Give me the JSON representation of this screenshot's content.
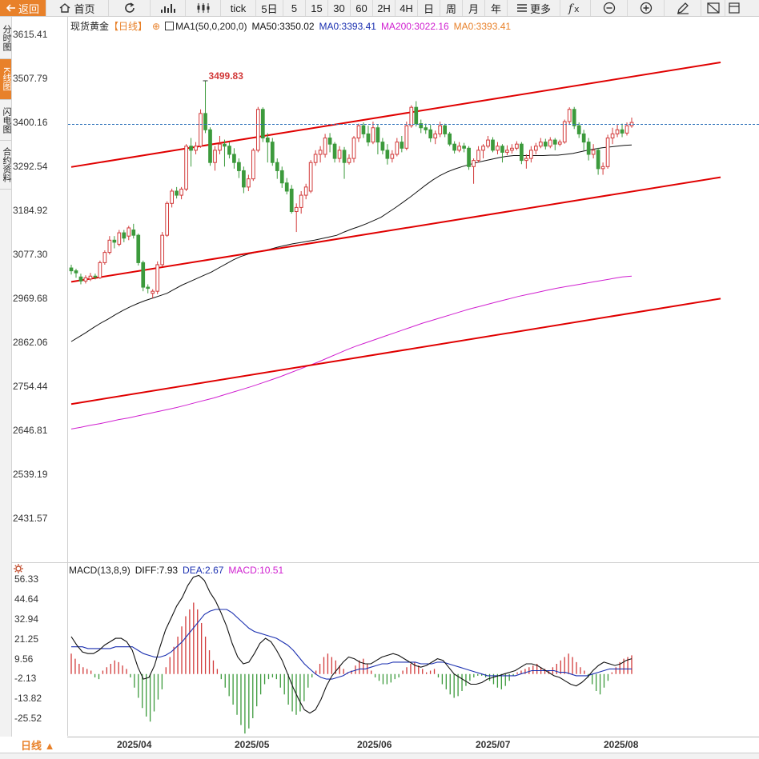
{
  "toolbar": {
    "back_label": "返回",
    "home_label": "首页",
    "tick_label": "tick",
    "periods": [
      "5日",
      "5",
      "15",
      "30",
      "60",
      "2H",
      "4H",
      "日",
      "周",
      "月",
      "年"
    ],
    "more_label": "更多"
  },
  "sidebar": {
    "tabs": [
      "分时图",
      "K线图",
      "闪电图",
      "合约资料"
    ],
    "active": 1
  },
  "legend": {
    "symbol": "现货黄金",
    "period": "【日线】",
    "ma_group": "MA1(50,0,200,0)",
    "ma50": "MA50:3350.02",
    "ma0a": "MA0:3393.41",
    "ma200": "MA200:3022.16",
    "ma0b": "MA0:3393.41"
  },
  "macd_legend": {
    "name": "MACD(13,8,9)",
    "diff": "DIFF:7.93",
    "dea": "DEA:2.67",
    "macd": "MACD:10.51"
  },
  "colors": {
    "up": "#d23a3a",
    "down": "#3c9a3c",
    "trend": "#e00000",
    "ma50": "#111111",
    "ma200": "#d020d0",
    "dea": "#1a2fb0",
    "accent": "#e8812a"
  },
  "price_axis": [
    "3615.41",
    "3507.79",
    "3400.16",
    "3292.54",
    "3184.92",
    "3077.30",
    "2969.68",
    "2862.06",
    "2754.44",
    "2646.81",
    "2539.19",
    "2431.57"
  ],
  "current_price": 3393.41,
  "macd_axis": [
    "56.33",
    "44.64",
    "32.94",
    "21.25",
    "9.56",
    "-2.13",
    "-13.82",
    "-25.52"
  ],
  "peak_annotation": "3499.83",
  "period_button": "日线 ▲",
  "x_axis": [
    "2025/04",
    "2025/05",
    "2025/06",
    "2025/07",
    "2025/08"
  ],
  "chart_data": {
    "type": "candlestick",
    "title": "现货黄金【日线】",
    "y_range": [
      2431.57,
      3615.41
    ],
    "candles": [
      {
        "o": 3042,
        "c": 3035,
        "h": 3050,
        "l": 3026
      },
      {
        "o": 3035,
        "c": 3030,
        "h": 3040,
        "l": 3018
      },
      {
        "o": 3020,
        "c": 3010,
        "h": 3028,
        "l": 3002
      },
      {
        "o": 3010,
        "c": 3018,
        "h": 3024,
        "l": 3004
      },
      {
        "o": 3015,
        "c": 3022,
        "h": 3030,
        "l": 3010
      },
      {
        "o": 3022,
        "c": 3020,
        "h": 3028,
        "l": 3014
      },
      {
        "o": 3018,
        "c": 3055,
        "h": 3060,
        "l": 3015
      },
      {
        "o": 3055,
        "c": 3080,
        "h": 3085,
        "l": 3050
      },
      {
        "o": 3080,
        "c": 3110,
        "h": 3120,
        "l": 3075
      },
      {
        "o": 3110,
        "c": 3105,
        "h": 3120,
        "l": 3090
      },
      {
        "o": 3100,
        "c": 3128,
        "h": 3135,
        "l": 3095
      },
      {
        "o": 3128,
        "c": 3115,
        "h": 3135,
        "l": 3105
      },
      {
        "o": 3120,
        "c": 3140,
        "h": 3145,
        "l": 3110
      },
      {
        "o": 3135,
        "c": 3122,
        "h": 3150,
        "l": 3114
      },
      {
        "o": 3122,
        "c": 3055,
        "h": 3126,
        "l": 3048
      },
      {
        "o": 3055,
        "c": 2995,
        "h": 3060,
        "l": 2985
      },
      {
        "o": 2995,
        "c": 2992,
        "h": 3002,
        "l": 2980
      },
      {
        "o": 2980,
        "c": 2985,
        "h": 2990,
        "l": 2968
      },
      {
        "o": 2985,
        "c": 3050,
        "h": 3058,
        "l": 2978
      },
      {
        "o": 3050,
        "c": 3122,
        "h": 3130,
        "l": 3045
      },
      {
        "o": 3122,
        "c": 3200,
        "h": 3205,
        "l": 3118
      },
      {
        "o": 3200,
        "c": 3230,
        "h": 3236,
        "l": 3190
      },
      {
        "o": 3230,
        "c": 3220,
        "h": 3240,
        "l": 3212
      },
      {
        "o": 3220,
        "c": 3235,
        "h": 3240,
        "l": 3210
      },
      {
        "o": 3235,
        "c": 3340,
        "h": 3345,
        "l": 3230
      },
      {
        "o": 3340,
        "c": 3330,
        "h": 3360,
        "l": 3290
      },
      {
        "o": 3330,
        "c": 3340,
        "h": 3350,
        "l": 3320
      },
      {
        "o": 3340,
        "c": 3420,
        "h": 3430,
        "l": 3336
      },
      {
        "o": 3420,
        "c": 3380,
        "h": 3500,
        "l": 3372
      },
      {
        "o": 3380,
        "c": 3300,
        "h": 3386,
        "l": 3292
      },
      {
        "o": 3300,
        "c": 3330,
        "h": 3340,
        "l": 3280
      },
      {
        "o": 3330,
        "c": 3345,
        "h": 3365,
        "l": 3320
      },
      {
        "o": 3345,
        "c": 3340,
        "h": 3356,
        "l": 3290
      },
      {
        "o": 3340,
        "c": 3320,
        "h": 3350,
        "l": 3310
      },
      {
        "o": 3320,
        "c": 3300,
        "h": 3335,
        "l": 3285
      },
      {
        "o": 3300,
        "c": 3280,
        "h": 3310,
        "l": 3262
      },
      {
        "o": 3280,
        "c": 3240,
        "h": 3290,
        "l": 3225
      },
      {
        "o": 3240,
        "c": 3260,
        "h": 3270,
        "l": 3230
      },
      {
        "o": 3260,
        "c": 3330,
        "h": 3335,
        "l": 3255
      },
      {
        "o": 3330,
        "c": 3430,
        "h": 3436,
        "l": 3325
      },
      {
        "o": 3430,
        "c": 3360,
        "h": 3435,
        "l": 3350
      },
      {
        "o": 3360,
        "c": 3350,
        "h": 3372,
        "l": 3300
      },
      {
        "o": 3350,
        "c": 3300,
        "h": 3360,
        "l": 3292
      },
      {
        "o": 3300,
        "c": 3280,
        "h": 3310,
        "l": 3260
      },
      {
        "o": 3280,
        "c": 3250,
        "h": 3290,
        "l": 3238
      },
      {
        "o": 3250,
        "c": 3230,
        "h": 3262,
        "l": 3222
      },
      {
        "o": 3235,
        "c": 3180,
        "h": 3245,
        "l": 3175
      },
      {
        "o": 3180,
        "c": 3190,
        "h": 3200,
        "l": 3130
      },
      {
        "o": 3190,
        "c": 3220,
        "h": 3230,
        "l": 3175
      },
      {
        "o": 3220,
        "c": 3240,
        "h": 3248,
        "l": 3210
      },
      {
        "o": 3230,
        "c": 3300,
        "h": 3306,
        "l": 3225
      },
      {
        "o": 3300,
        "c": 3320,
        "h": 3330,
        "l": 3292
      },
      {
        "o": 3320,
        "c": 3330,
        "h": 3340,
        "l": 3300
      },
      {
        "o": 3320,
        "c": 3360,
        "h": 3370,
        "l": 3312
      },
      {
        "o": 3360,
        "c": 3345,
        "h": 3372,
        "l": 3325
      },
      {
        "o": 3345,
        "c": 3310,
        "h": 3350,
        "l": 3300
      },
      {
        "o": 3310,
        "c": 3330,
        "h": 3340,
        "l": 3300
      },
      {
        "o": 3330,
        "c": 3300,
        "h": 3338,
        "l": 3260
      },
      {
        "o": 3300,
        "c": 3310,
        "h": 3320,
        "l": 3295
      },
      {
        "o": 3310,
        "c": 3360,
        "h": 3365,
        "l": 3300
      },
      {
        "o": 3360,
        "c": 3390,
        "h": 3395,
        "l": 3350
      },
      {
        "o": 3390,
        "c": 3370,
        "h": 3398,
        "l": 3360
      },
      {
        "o": 3370,
        "c": 3350,
        "h": 3390,
        "l": 3340
      },
      {
        "o": 3350,
        "c": 3385,
        "h": 3400,
        "l": 3345
      },
      {
        "o": 3385,
        "c": 3350,
        "h": 3392,
        "l": 3320
      },
      {
        "o": 3350,
        "c": 3330,
        "h": 3360,
        "l": 3320
      },
      {
        "o": 3330,
        "c": 3310,
        "h": 3345,
        "l": 3295
      },
      {
        "o": 3310,
        "c": 3320,
        "h": 3330,
        "l": 3300
      },
      {
        "o": 3320,
        "c": 3350,
        "h": 3360,
        "l": 3315
      },
      {
        "o": 3350,
        "c": 3335,
        "h": 3365,
        "l": 3325
      },
      {
        "o": 3335,
        "c": 3390,
        "h": 3400,
        "l": 3330
      },
      {
        "o": 3390,
        "c": 3435,
        "h": 3440,
        "l": 3385
      },
      {
        "o": 3435,
        "c": 3395,
        "h": 3450,
        "l": 3388
      },
      {
        "o": 3395,
        "c": 3385,
        "h": 3405,
        "l": 3372
      },
      {
        "o": 3385,
        "c": 3380,
        "h": 3395,
        "l": 3370
      },
      {
        "o": 3380,
        "c": 3360,
        "h": 3392,
        "l": 3350
      },
      {
        "o": 3360,
        "c": 3370,
        "h": 3378,
        "l": 3345
      },
      {
        "o": 3370,
        "c": 3390,
        "h": 3400,
        "l": 3362
      },
      {
        "o": 3390,
        "c": 3370,
        "h": 3395,
        "l": 3362
      },
      {
        "o": 3370,
        "c": 3345,
        "h": 3375,
        "l": 3340
      },
      {
        "o": 3345,
        "c": 3330,
        "h": 3352,
        "l": 3322
      },
      {
        "o": 3330,
        "c": 3340,
        "h": 3350,
        "l": 3325
      },
      {
        "o": 3340,
        "c": 3335,
        "h": 3348,
        "l": 3325
      },
      {
        "o": 3335,
        "c": 3290,
        "h": 3340,
        "l": 3282
      },
      {
        "o": 3290,
        "c": 3305,
        "h": 3310,
        "l": 3248
      },
      {
        "o": 3305,
        "c": 3330,
        "h": 3340,
        "l": 3300
      },
      {
        "o": 3330,
        "c": 3340,
        "h": 3345,
        "l": 3310
      },
      {
        "o": 3340,
        "c": 3355,
        "h": 3365,
        "l": 3335
      },
      {
        "o": 3355,
        "c": 3330,
        "h": 3362,
        "l": 3325
      },
      {
        "o": 3330,
        "c": 3340,
        "h": 3350,
        "l": 3320
      },
      {
        "o": 3340,
        "c": 3325,
        "h": 3345,
        "l": 3300
      },
      {
        "o": 3325,
        "c": 3330,
        "h": 3342,
        "l": 3318
      },
      {
        "o": 3330,
        "c": 3335,
        "h": 3345,
        "l": 3322
      },
      {
        "o": 3335,
        "c": 3345,
        "h": 3352,
        "l": 3330
      },
      {
        "o": 3345,
        "c": 3305,
        "h": 3350,
        "l": 3296
      },
      {
        "o": 3305,
        "c": 3310,
        "h": 3320,
        "l": 3285
      },
      {
        "o": 3310,
        "c": 3330,
        "h": 3340,
        "l": 3300
      },
      {
        "o": 3330,
        "c": 3340,
        "h": 3348,
        "l": 3320
      },
      {
        "o": 3340,
        "c": 3350,
        "h": 3360,
        "l": 3335
      },
      {
        "o": 3350,
        "c": 3340,
        "h": 3358,
        "l": 3332
      },
      {
        "o": 3340,
        "c": 3355,
        "h": 3362,
        "l": 3335
      },
      {
        "o": 3355,
        "c": 3345,
        "h": 3360,
        "l": 3330
      },
      {
        "o": 3345,
        "c": 3350,
        "h": 3356,
        "l": 3340
      },
      {
        "o": 3350,
        "c": 3400,
        "h": 3405,
        "l": 3346
      },
      {
        "o": 3400,
        "c": 3430,
        "h": 3435,
        "l": 3392
      },
      {
        "o": 3430,
        "c": 3390,
        "h": 3436,
        "l": 3382
      },
      {
        "o": 3390,
        "c": 3370,
        "h": 3398,
        "l": 3360
      },
      {
        "o": 3370,
        "c": 3350,
        "h": 3380,
        "l": 3330
      },
      {
        "o": 3350,
        "c": 3320,
        "h": 3360,
        "l": 3305
      },
      {
        "o": 3320,
        "c": 3330,
        "h": 3345,
        "l": 3310
      },
      {
        "o": 3330,
        "c": 3285,
        "h": 3336,
        "l": 3270
      },
      {
        "o": 3285,
        "c": 3290,
        "h": 3300,
        "l": 3270
      },
      {
        "o": 3290,
        "c": 3360,
        "h": 3368,
        "l": 3285
      },
      {
        "o": 3360,
        "c": 3370,
        "h": 3385,
        "l": 3345
      },
      {
        "o": 3370,
        "c": 3380,
        "h": 3392,
        "l": 3362
      },
      {
        "o": 3380,
        "c": 3372,
        "h": 3395,
        "l": 3362
      },
      {
        "o": 3372,
        "c": 3390,
        "h": 3398,
        "l": 3366
      },
      {
        "o": 3390,
        "c": 3398,
        "h": 3410,
        "l": 3385
      }
    ],
    "ma50": [
      2862,
      2873,
      2884,
      2896,
      2907,
      2917,
      2928,
      2938,
      2947,
      2955,
      2962,
      2968,
      2974,
      2980,
      2990,
      3000,
      3008,
      3016,
      3024,
      3032,
      3042,
      3052,
      3062,
      3070,
      3076,
      3080,
      3084,
      3088,
      3093,
      3097,
      3101,
      3104,
      3107,
      3110,
      3114,
      3118,
      3122,
      3130,
      3137,
      3143,
      3150,
      3158,
      3166,
      3178,
      3190,
      3203,
      3216,
      3230,
      3244,
      3257,
      3268,
      3277,
      3284,
      3290,
      3295,
      3300,
      3304,
      3308,
      3312,
      3315,
      3317,
      3317,
      3317,
      3317,
      3317,
      3318,
      3318,
      3320,
      3322,
      3326,
      3330,
      3333,
      3336,
      3338,
      3340,
      3342,
      3343
    ],
    "ma200": [
      2648,
      2652,
      2657,
      2661,
      2666,
      2671,
      2675,
      2680,
      2685,
      2690,
      2695,
      2700,
      2706,
      2712,
      2718,
      2724,
      2731,
      2738,
      2745,
      2752,
      2760,
      2768,
      2776,
      2785,
      2794,
      2803,
      2812,
      2822,
      2832,
      2842,
      2851,
      2859,
      2867,
      2875,
      2883,
      2891,
      2899,
      2907,
      2914,
      2921,
      2928,
      2935,
      2942,
      2948,
      2954,
      2960,
      2966,
      2972,
      2977,
      2982,
      2987,
      2992,
      2996,
      3000,
      3004,
      3008,
      3012,
      3016,
      3020,
      3022
    ],
    "trend_lines": [
      {
        "p1": [
          "2025-03-14",
          3289
        ],
        "p2": [
          "2025-08-29",
          3545
        ]
      },
      {
        "p1": [
          "2025-03-14",
          3008
        ],
        "p2": [
          "2025-08-29",
          3264
        ]
      },
      {
        "p1": [
          "2025-03-14",
          2709
        ],
        "p2": [
          "2025-08-29",
          2967
        ]
      }
    ],
    "macd": {
      "y_range": [
        -37.2,
        68.0
      ],
      "diff": [
        22,
        17,
        13,
        12,
        12,
        14,
        17,
        19,
        21,
        21,
        19,
        14,
        4,
        -3,
        -2,
        5,
        16,
        26,
        33,
        40,
        45,
        52,
        57,
        58,
        55,
        48,
        43,
        36,
        28,
        18,
        10,
        6,
        7,
        12,
        18,
        21,
        19,
        14,
        8,
        0,
        -8,
        -15,
        -21,
        -23,
        -21,
        -15,
        -7,
        -1,
        3,
        7,
        10,
        9,
        7,
        6,
        6,
        8,
        10,
        11,
        12,
        11,
        9,
        7,
        5,
        4,
        5,
        7,
        9,
        8,
        4,
        0,
        -2,
        -4,
        -6,
        -6,
        -5,
        -3,
        -2,
        -1,
        0,
        1,
        2,
        4,
        6,
        6,
        5,
        3,
        1,
        -1,
        -2,
        -4,
        -6,
        -7,
        -5,
        -2,
        2,
        5,
        7,
        6,
        5,
        6,
        8,
        9
      ],
      "dea": [
        16,
        16,
        16,
        15,
        15,
        15,
        15,
        15,
        16,
        16,
        16,
        16,
        14,
        12,
        11,
        10,
        10,
        11,
        13,
        16,
        19,
        23,
        27,
        31,
        35,
        37,
        38,
        38,
        38,
        36,
        33,
        30,
        27,
        25,
        24,
        23,
        22,
        21,
        19,
        17,
        14,
        10,
        6,
        3,
        0,
        -2,
        -3,
        -3,
        -2,
        -1,
        1,
        2,
        3,
        3,
        4,
        5,
        6,
        6,
        7,
        7,
        7,
        7,
        7,
        6,
        6,
        6,
        7,
        7,
        6,
        5,
        4,
        3,
        2,
        1,
        0,
        -1,
        -1,
        -1,
        -1,
        -1,
        -1,
        0,
        1,
        2,
        2,
        2,
        2,
        2,
        1,
        1,
        0,
        -1,
        -1,
        -1,
        0,
        1,
        2,
        3,
        3,
        3,
        3,
        3
      ]
    },
    "macd_hist": [
      12,
      9,
      6,
      4,
      3,
      2,
      -2,
      -3,
      2,
      4,
      6,
      8,
      7,
      5,
      3,
      -2,
      -8,
      -14,
      -20,
      -25,
      -28,
      -22,
      -15,
      -9,
      4,
      10,
      16,
      22,
      28,
      34,
      38,
      42,
      38,
      30,
      22,
      14,
      8,
      3,
      -3,
      -8,
      -13,
      -18,
      -24,
      -30,
      -35,
      -32,
      -26,
      -19,
      -12,
      -6,
      -3,
      -2,
      -3,
      -8,
      -12,
      -18,
      -22,
      -24,
      -22,
      -16,
      -8,
      -2,
      2,
      6,
      10,
      12,
      10,
      8,
      5,
      3,
      1,
      2,
      5,
      8,
      9,
      6,
      2,
      -2,
      -4,
      -6,
      -6,
      -5,
      -3,
      -2,
      2,
      4,
      6,
      7,
      5,
      3,
      1,
      2,
      3,
      -2,
      -6,
      -9,
      -12,
      -14,
      -13,
      -10,
      -7,
      -4,
      -2,
      -1,
      -1,
      -2,
      -4,
      -6,
      -8,
      -9,
      -7,
      -4,
      -1,
      1,
      2,
      3,
      4,
      5,
      6,
      4,
      3,
      2,
      4,
      6,
      8,
      10,
      12,
      10,
      7,
      4,
      2,
      -2,
      -6,
      -10,
      -12,
      -8,
      -4,
      1,
      4,
      7,
      9,
      10,
      11
    ]
  }
}
